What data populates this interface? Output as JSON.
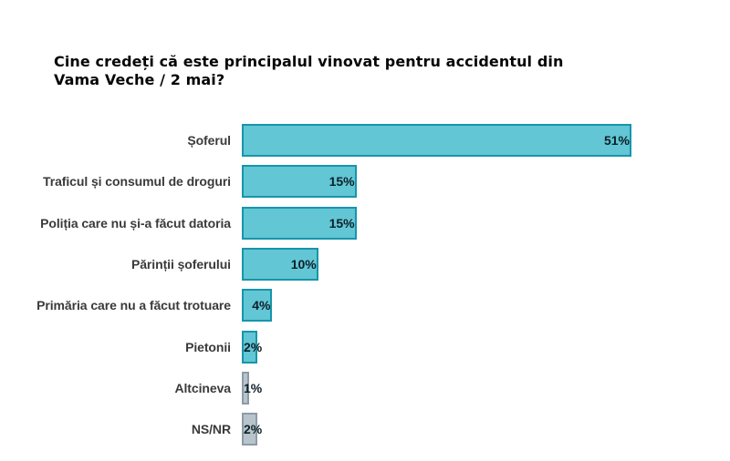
{
  "title": {
    "line1": "Cine credeți că este principalul vinovat pentru accidentul din",
    "line2": "Vama Veche / 2 mai?"
  },
  "chart_data": {
    "type": "bar",
    "orientation": "horizontal",
    "title": "Cine credeți că este principalul vinovat pentru accidentul din Vama Veche / 2 mai?",
    "unit": "%",
    "categories": [
      "Șoferul",
      "Traficul și consumul de droguri",
      "Poliția care nu și-a făcut datoria",
      "Părinții șoferului",
      "Primăria care nu a făcut trotuare",
      "Pietonii",
      "Altcineva",
      "NS/NR"
    ],
    "values": [
      51,
      15,
      15,
      10,
      4,
      2,
      1,
      2
    ],
    "value_labels": [
      "51%",
      "15%",
      "15%",
      "10%",
      "4%",
      "2%",
      "1%",
      "2%"
    ],
    "bar_styles": [
      "teal",
      "teal",
      "teal",
      "teal",
      "teal",
      "teal",
      "gray",
      "gray"
    ],
    "value_label_position": "inside-end",
    "xlim": [
      0,
      53
    ],
    "grid": false,
    "legend": null,
    "colors": {
      "teal_fill": "#62c6d5",
      "teal_border": "#1795aa",
      "gray_fill": "#b8c4cc",
      "gray_border": "#8c9ba6",
      "value_text": "#0d2027",
      "category_text": "#3a3a3a",
      "title_text": "#060606",
      "background": "#ffffff"
    }
  }
}
